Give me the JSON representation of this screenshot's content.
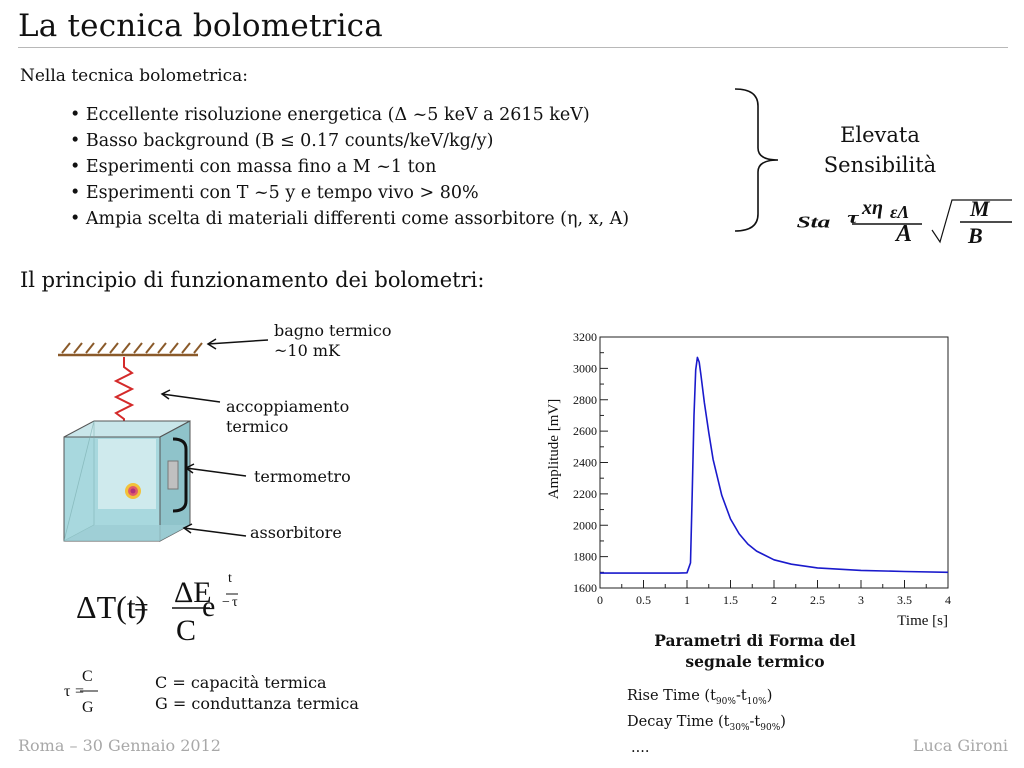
{
  "slide": {
    "title": "La tecnica bolometrica",
    "intro": "Nella tecnica bolometrica:",
    "bullets": [
      "Eccellente risoluzione energetica (Δ ~5 keV a 2615 keV)",
      "Basso background (B ≤ 0.17 counts/keV/kg/y)",
      "Esperimenti con massa fino a M ~1 ton",
      "Esperimenti con T ~5 y e tempo vivo > 80%",
      "Ampia scelta di materiali differenti come assorbitore (η, x, A)"
    ],
    "conclusion_line1": "Elevata",
    "conclusion_line2": "Sensibilità",
    "principle_heading": "Il principio di funzionamento dei bolometri:",
    "labels": {
      "bagno_line1": "bagno termico",
      "bagno_line2": "~10 mK",
      "accop_line1": "accoppiamento",
      "accop_line2": "termico",
      "termometro": "termometro",
      "assorbitore": "assorbitore"
    },
    "definitions": {
      "c_def": "C = capacità termica",
      "g_def": "G = conduttanza termica"
    },
    "chart_caption_line1": "Parametri di Forma del",
    "chart_caption_line2": "segnale termico",
    "params": {
      "rise": "Rise Time (t",
      "rise_sub1": "90%",
      "rise_mid": "-t",
      "rise_sub2": "10%",
      "rise_end": ")",
      "decay": "Decay Time (t",
      "decay_sub1": "30%",
      "decay_mid": "-t",
      "decay_sub2": "90%",
      "decay_end": ")",
      "more": "...."
    },
    "footer_left": "Roma – 30 Gennaio 2012",
    "footer_right": "Luca Gironi"
  },
  "colors": {
    "signal": "#1a1acc",
    "cube_face": "#a8d8de",
    "spring": "#d42a2a",
    "bath": "#8a5a2a"
  },
  "chart_data": {
    "type": "line",
    "xlabel": "Time [s]",
    "ylabel": "Amplitude [mV]",
    "xlim": [
      0,
      4
    ],
    "ylim": [
      1600,
      3200
    ],
    "xticks": [
      0,
      0.5,
      1,
      1.5,
      2,
      2.5,
      3,
      3.5,
      4
    ],
    "xtick_labels": [
      "0",
      "0.5",
      "1",
      "1.5",
      "2",
      "2.5",
      "3",
      "3.5",
      "4"
    ],
    "yticks": [
      1600,
      1800,
      2000,
      2200,
      2400,
      2600,
      2800,
      3000,
      3200
    ],
    "ytick_labels": [
      "1600",
      "1800",
      "2000",
      "2200",
      "2400",
      "2600",
      "2800",
      "3000",
      "3200"
    ],
    "series": [
      {
        "x": [
          0,
          0.5,
          0.9,
          1.0,
          1.04,
          1.06,
          1.08,
          1.1,
          1.12,
          1.14,
          1.16,
          1.2,
          1.25,
          1.3,
          1.4,
          1.5,
          1.6,
          1.7,
          1.8,
          2.0,
          2.2,
          2.5,
          3.0,
          3.5,
          4.0
        ],
        "y": [
          1695,
          1695,
          1695,
          1697,
          1760,
          2200,
          2700,
          2990,
          3070,
          3040,
          2960,
          2780,
          2590,
          2420,
          2190,
          2040,
          1945,
          1880,
          1835,
          1780,
          1752,
          1728,
          1712,
          1705,
          1700
        ]
      }
    ]
  }
}
